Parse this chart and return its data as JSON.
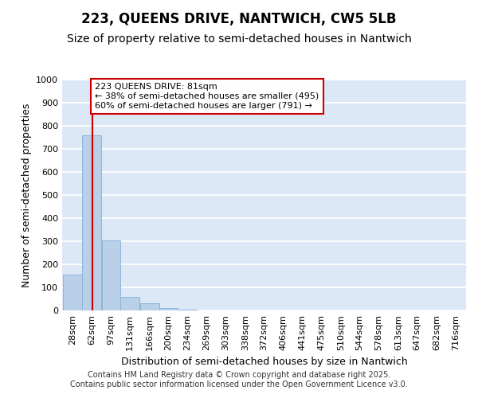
{
  "title": "223, QUEENS DRIVE, NANTWICH, CW5 5LB",
  "subtitle": "Size of property relative to semi-detached houses in Nantwich",
  "xlabel": "Distribution of semi-detached houses by size in Nantwich",
  "ylabel": "Number of semi-detached properties",
  "bins": [
    28,
    62,
    97,
    131,
    166,
    200,
    234,
    269,
    303,
    338,
    372,
    406,
    441,
    475,
    510,
    544,
    578,
    613,
    647,
    682,
    716
  ],
  "bin_width": 34,
  "bar_heights": [
    155,
    760,
    305,
    60,
    30,
    10,
    5,
    0,
    0,
    0,
    0,
    0,
    0,
    0,
    0,
    0,
    0,
    0,
    0,
    0,
    0
  ],
  "bar_color": "#bad0e8",
  "bar_edge_color": "#8cb4d8",
  "background_color": "#dce8f5",
  "grid_color": "#ffffff",
  "property_size": 81,
  "red_line_color": "#cc0000",
  "annotation_line1": "223 QUEENS DRIVE: 81sqm",
  "annotation_line2": "← 38% of semi-detached houses are smaller (495)",
  "annotation_line3": "60% of semi-detached houses are larger (791) →",
  "annotation_box_color": "#cc0000",
  "ylim": [
    0,
    1000
  ],
  "yticks": [
    0,
    100,
    200,
    300,
    400,
    500,
    600,
    700,
    800,
    900,
    1000
  ],
  "footer_line1": "Contains HM Land Registry data © Crown copyright and database right 2025.",
  "footer_line2": "Contains public sector information licensed under the Open Government Licence v3.0.",
  "title_fontsize": 12,
  "subtitle_fontsize": 10,
  "axis_label_fontsize": 9,
  "tick_fontsize": 8,
  "footer_fontsize": 7
}
